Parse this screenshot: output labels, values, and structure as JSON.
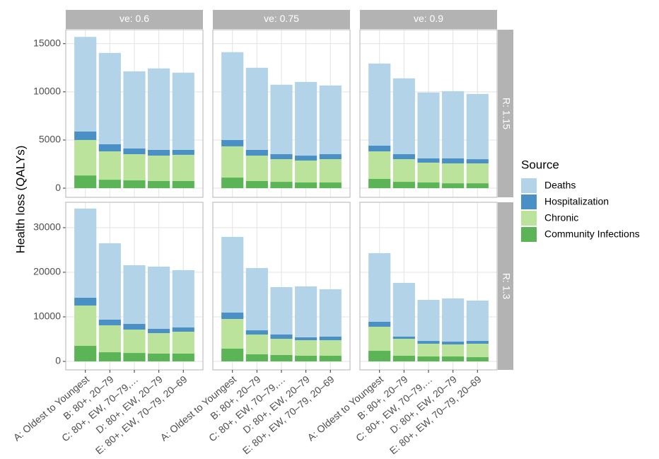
{
  "chart_data": {
    "type": "bar",
    "stacked": true,
    "ylabel": "Health loss (QALYs)",
    "grid": true,
    "legend": {
      "title": "Source",
      "position": "right",
      "entries": [
        {
          "name": "Deaths",
          "color": "#b3d4e8"
        },
        {
          "name": "Hospitalization",
          "color": "#4a90c4"
        },
        {
          "name": "Chronic",
          "color": "#bce39c"
        },
        {
          "name": "Community Infections",
          "color": "#5bb455"
        }
      ]
    },
    "series_colors": [
      "#5bb455",
      "#bce39c",
      "#4a90c4",
      "#b3d4e8"
    ],
    "categories": [
      "A: Oldest to Youngest",
      "B: 80+, 20–79",
      "C: 80+, EW, 70–79,…",
      "D: 80+, EW, 20–79",
      "E: 80+, EW, 70–79, 20–69"
    ],
    "columns": [
      "ve: 0.6",
      "ve: 0.75",
      "ve: 0.9"
    ],
    "rows": [
      {
        "label": "R: 1.15",
        "ylim": [
          -950,
          16450
        ],
        "yticks": [
          0,
          5000,
          10000,
          15000
        ],
        "panels": [
          {
            "series": [
              {
                "values": [
                  1320,
                  880,
                  810,
                  740,
                  740
                ]
              },
              {
                "values": [
                  3680,
                  2940,
                  2720,
                  2640,
                  2720
                ]
              },
              {
                "values": [
                  880,
                  740,
                  590,
                  590,
                  510
                ]
              },
              {
                "values": [
                  9820,
                  9480,
                  8010,
                  8460,
                  8020
                ]
              }
            ]
          },
          {
            "series": [
              {
                "values": [
                  1100,
                  740,
                  660,
                  590,
                  590
                ]
              },
              {
                "values": [
                  3240,
                  2640,
                  2350,
                  2280,
                  2420
                ]
              },
              {
                "values": [
                  660,
                  590,
                  520,
                  510,
                  520
                ]
              },
              {
                "values": [
                  9120,
                  8530,
                  7210,
                  7650,
                  7130
                ]
              }
            ]
          },
          {
            "series": [
              {
                "values": [
                  960,
                  660,
                  590,
                  510,
                  510
                ]
              },
              {
                "values": [
                  2860,
                  2350,
                  2060,
                  2060,
                  2060
                ]
              },
              {
                "values": [
                  590,
                  520,
                  440,
                  520,
                  440
                ]
              },
              {
                "values": [
                  8530,
                  7870,
                  6840,
                  6980,
                  6770
                ]
              }
            ]
          }
        ]
      },
      {
        "label": "R: 1.3",
        "ylim": [
          -1900,
          35700
        ],
        "yticks": [
          0,
          10000,
          20000,
          30000
        ],
        "panels": [
          {
            "series": [
              {
                "values": [
                  3490,
                  2060,
                  1900,
                  1750,
                  1750
                ]
              },
              {
                "values": [
                  9050,
                  6040,
                  5240,
                  4600,
                  4920
                ]
              },
              {
                "values": [
                  1750,
                  1270,
                  1270,
                  950,
                  950
                ]
              },
              {
                "values": [
                  20000,
                  17140,
                  13180,
                  13970,
                  12860
                ]
              }
            ]
          },
          {
            "series": [
              {
                "values": [
                  2860,
                  1590,
                  1430,
                  1270,
                  1270
                ]
              },
              {
                "values": [
                  6660,
                  4440,
                  3650,
                  3490,
                  3490
                ]
              },
              {
                "values": [
                  1430,
                  950,
                  950,
                  640,
                  800
                ]
              },
              {
                "values": [
                  16990,
                  13970,
                  10640,
                  11430,
                  10630
                ]
              }
            ]
          },
          {
            "series": [
              {
                "values": [
                  2380,
                  1270,
                  1110,
                  1110,
                  950
                ]
              },
              {
                "values": [
                  5400,
                  3810,
                  2860,
                  2700,
                  3020
                ]
              },
              {
                "values": [
                  1110,
                  480,
                  630,
                  630,
                  630
                ]
              },
              {
                "values": [
                  15400,
                  12060,
                  9210,
                  9690,
                  9050
                ]
              }
            ]
          }
        ]
      }
    ]
  }
}
